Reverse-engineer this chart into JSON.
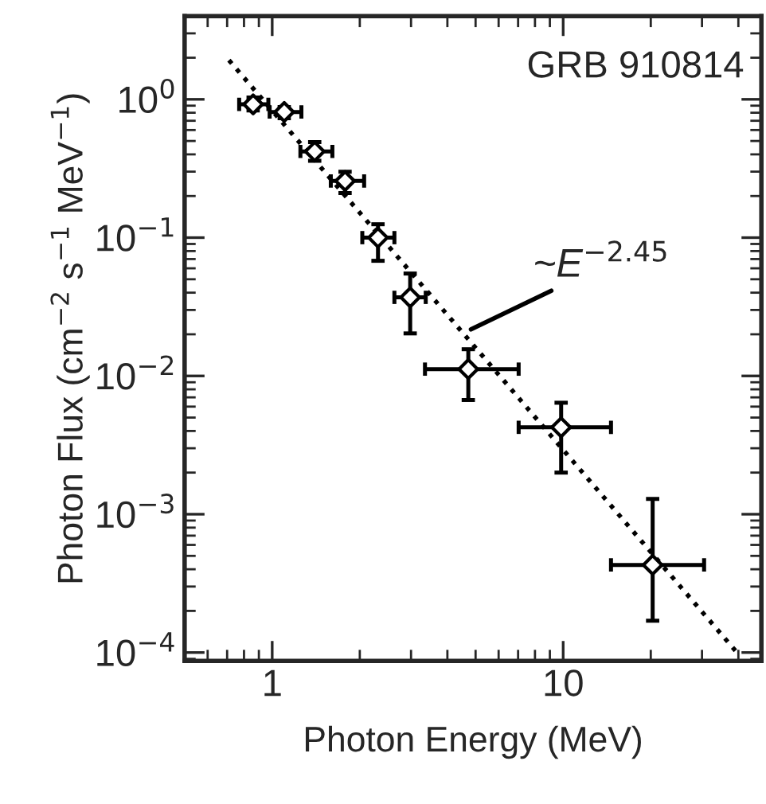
{
  "chart_data": {
    "type": "scatter",
    "xlabel": "Photon Energy (MeV)",
    "ylabel": "Photon Flux (cm$^{−2}$ s$^{−1}$ MeV$^{−1}$)",
    "log": "xy",
    "xlim": [
      0.5,
      48
    ],
    "ylim": [
      8.7e-05,
      4
    ],
    "xticks": [
      1,
      10
    ],
    "yticks": [
      {
        "value": 0.0001,
        "label": "10$^{−4}$"
      },
      {
        "value": 0.001,
        "label": "10$^{−3}$"
      },
      {
        "value": 0.01,
        "label": "10$^{−2}$"
      },
      {
        "value": 0.1,
        "label": "10$^{−1}$"
      },
      {
        "value": 1,
        "label": "10$^{0}$"
      }
    ],
    "grid": false,
    "series": [
      {
        "color": "#000000",
        "marker": "diamond",
        "x": [
          0.86,
          1.1,
          1.4,
          1.78,
          2.31,
          2.98,
          4.72,
          9.84,
          20.3
        ],
        "values": [
          0.92,
          0.81,
          0.42,
          0.257,
          0.1,
          0.037,
          0.0112,
          0.00425,
          0.00043
        ],
        "xerrors": [
          [
            0.77,
            0.97
          ],
          [
            0.98,
            1.26
          ],
          [
            1.25,
            1.61
          ],
          [
            1.59,
            2.07
          ],
          [
            2.04,
            2.63
          ],
          [
            2.63,
            3.37
          ],
          [
            3.35,
            7.03
          ],
          [
            7.03,
            14.6
          ],
          [
            14.6,
            30.5
          ]
        ],
        "errors": [
          [
            0.83,
            1.03
          ],
          [
            0.73,
            0.88
          ],
          [
            0.36,
            0.49
          ],
          [
            0.21,
            0.3
          ],
          [
            0.068,
            0.125
          ],
          [
            0.0203,
            0.055
          ],
          [
            0.0067,
            0.0156
          ],
          [
            0.002,
            0.0064
          ],
          [
            0.00017,
            0.00129
          ]
        ]
      },
      {
        "type": "line",
        "color": "#000000",
        "marker": "none",
        "line_style": "dotted",
        "x": [
          0.71,
          40.4
        ],
        "values": [
          1.92,
          9.5e-05
        ]
      }
    ],
    "annotations": [
      "GRB 910814",
      {
        "text": "~E$^{−2.45}$",
        "x": 4.82,
        "y": 0.0217
      }
    ]
  }
}
